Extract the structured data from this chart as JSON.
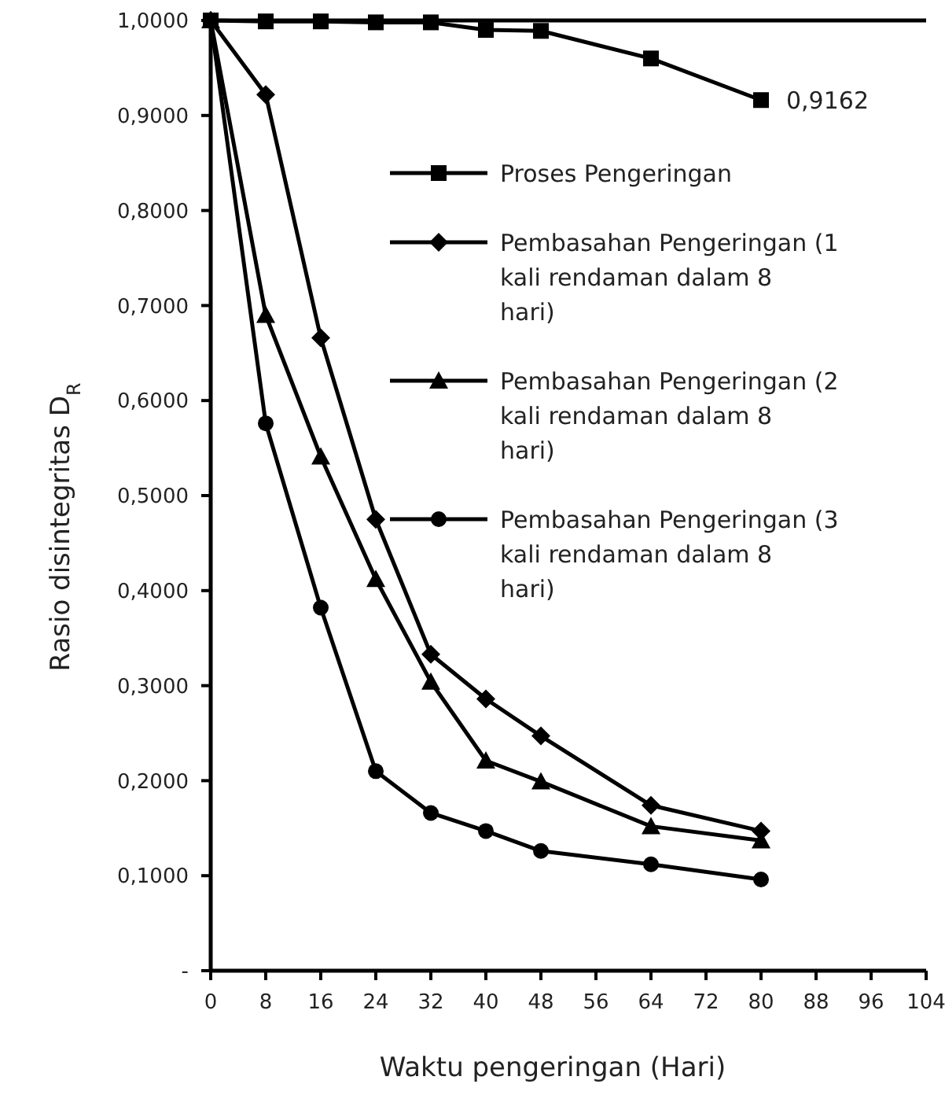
{
  "chart_data": {
    "type": "line",
    "xlabel": "Waktu pengeringan (Hari)",
    "ylabel": "Rasio disintegritas D$_{R}$",
    "x": [
      0,
      8,
      16,
      24,
      32,
      40,
      48,
      64,
      80
    ],
    "xlim": [
      0,
      104
    ],
    "xticks": [
      0,
      8,
      16,
      24,
      32,
      40,
      48,
      56,
      64,
      72,
      80,
      88,
      96,
      104
    ],
    "ylim": [
      0,
      1
    ],
    "yticks": [
      {
        "value": 0,
        "label": "-"
      },
      {
        "value": 0.1,
        "label": "0,1000"
      },
      {
        "value": 0.2,
        "label": "0,2000"
      },
      {
        "value": 0.3,
        "label": "0,3000"
      },
      {
        "value": 0.4,
        "label": "0,4000"
      },
      {
        "value": 0.5,
        "label": "0,5000"
      },
      {
        "value": 0.6,
        "label": "0,6000"
      },
      {
        "value": 0.7,
        "label": "0,7000"
      },
      {
        "value": 0.8,
        "label": "0,8000"
      },
      {
        "value": 0.9,
        "label": "0,9000"
      },
      {
        "value": 1,
        "label": "1,0000"
      }
    ],
    "series": [
      {
        "name": "Proses Pengeringan",
        "color": "#000000",
        "marker": "square",
        "values": [
          1,
          0.999,
          0.999,
          0.998,
          0.998,
          0.99,
          0.989,
          0.96,
          0.9162
        ]
      },
      {
        "name": "Pembasahan Pengeringan (1 kali rendaman dalam 8 hari)",
        "color": "#000000",
        "marker": "diamond",
        "values": [
          1,
          0.922,
          0.666,
          0.475,
          0.333,
          0.286,
          0.247,
          0.174,
          0.147
        ]
      },
      {
        "name": "Pembasahan Pengeringan (2 kali rendaman dalam 8 hari)",
        "color": "#000000",
        "marker": "triangle",
        "values": [
          1,
          0.69,
          0.541,
          0.412,
          0.304,
          0.221,
          0.199,
          0.152,
          0.137
        ]
      },
      {
        "name": "Pembasahan Pengeringan (3 kali rendaman dalam 8 hari)",
        "color": "#000000",
        "marker": "circle",
        "values": [
          1,
          0.576,
          0.382,
          0.21,
          0.166,
          0.147,
          0.126,
          0.112,
          0.096
        ]
      }
    ],
    "annotations": [
      {
        "text": "0,9162",
        "x": 80,
        "y": 0.9162
      }
    ],
    "ref_lines": [
      {
        "axis": "y",
        "value": 1,
        "color": "#000000"
      }
    ],
    "legend": "right",
    "grid": false,
    "line_style": "solid"
  }
}
